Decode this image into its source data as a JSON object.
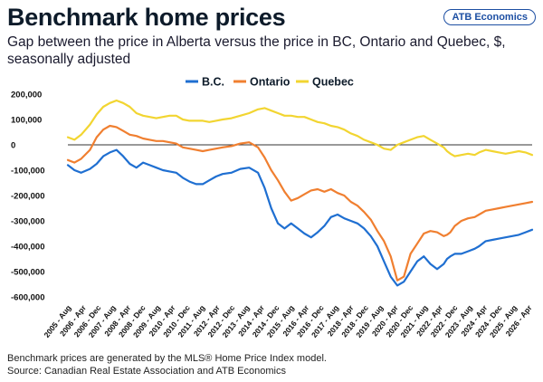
{
  "header": {
    "title": "Benchmark home prices",
    "brand": "ATB Economics",
    "subtitle": "Gap between the price in Alberta versus the price in BC, Ontario and Quebec, $, seasonally adjusted"
  },
  "footer": {
    "note": "Benchmark prices are generated by the MLS® Home Price Index model.",
    "source": "Source: Canadian Real Estate Association and ATB Economics"
  },
  "chart_data": {
    "type": "line",
    "ylim": [
      -600000,
      200000
    ],
    "yticks": [
      200000,
      100000,
      0,
      -100000,
      -200000,
      -300000,
      -400000,
      -500000,
      -600000
    ],
    "ytick_labels": [
      "200,000",
      "100,000",
      "0",
      "-100,000",
      "-200,000",
      "-300,000",
      "-400,000",
      "-500,000",
      "-600,000"
    ],
    "xlim": [
      2005.0,
      2026.0
    ],
    "xtick_labels": [
      "2005 - Aug",
      "2006 - Apr",
      "2006 - Dec",
      "2007 - Aug",
      "2008 - Apr",
      "2008 - Dec",
      "2009 - Aug",
      "2010 - Apr",
      "2010 - Dec",
      "2011 - Aug",
      "2012 - Apr",
      "2012 - Dec",
      "2013 - Aug",
      "2014 - Apr",
      "2014 - Dec",
      "2015 - Aug",
      "2016 - Apr",
      "2016 - Dec",
      "2017 - Aug",
      "2018 - Apr",
      "2018 - Dec",
      "2019 - Aug",
      "2020 - Apr",
      "2020 - Dec",
      "2021 - Aug",
      "2022 - Apr",
      "2022 - Dec",
      "2023 - Aug",
      "2024 - Apr",
      "2024 - Dec",
      "2025 - Aug",
      "2026 - Apr"
    ],
    "legend_position": "top-center",
    "colors": {
      "bc": "#1f6fd1",
      "ontario": "#f07f30",
      "quebec": "#f2d531",
      "zero_line": "#333333"
    },
    "series": [
      {
        "name": "B.C.",
        "x": [
          2005.0,
          2005.3,
          2005.6,
          2006.0,
          2006.3,
          2006.6,
          2006.9,
          2007.2,
          2007.5,
          2007.8,
          2008.1,
          2008.4,
          2008.7,
          2009.0,
          2009.3,
          2009.6,
          2009.9,
          2010.2,
          2010.5,
          2010.8,
          2011.1,
          2011.4,
          2011.7,
          2012.0,
          2012.4,
          2012.8,
          2013.2,
          2013.6,
          2013.9,
          2014.2,
          2014.5,
          2014.8,
          2015.1,
          2015.4,
          2015.7,
          2016.0,
          2016.3,
          2016.6,
          2016.9,
          2017.2,
          2017.5,
          2017.8,
          2018.1,
          2018.4,
          2018.7,
          2019.0,
          2019.3,
          2019.6,
          2019.9,
          2020.2,
          2020.5,
          2020.8,
          2021.1,
          2021.4,
          2021.7,
          2022.0,
          2022.15,
          2022.3,
          2022.5,
          2022.8,
          2023.1,
          2023.4,
          2023.6,
          2023.9,
          2024.2,
          2024.5,
          2024.8,
          2025.1,
          2025.4,
          2025.7,
          2026.0
        ],
        "values": [
          -80000,
          -100000,
          -110000,
          -95000,
          -75000,
          -45000,
          -30000,
          -20000,
          -45000,
          -75000,
          -90000,
          -70000,
          -80000,
          -90000,
          -100000,
          -105000,
          -110000,
          -130000,
          -145000,
          -155000,
          -155000,
          -140000,
          -125000,
          -115000,
          -110000,
          -95000,
          -90000,
          -110000,
          -170000,
          -250000,
          -310000,
          -330000,
          -310000,
          -330000,
          -350000,
          -365000,
          -345000,
          -320000,
          -285000,
          -275000,
          -290000,
          -300000,
          -310000,
          -330000,
          -360000,
          -400000,
          -460000,
          -520000,
          -555000,
          -540000,
          -500000,
          -460000,
          -440000,
          -470000,
          -490000,
          -470000,
          -450000,
          -440000,
          -430000,
          -430000,
          -420000,
          -410000,
          -400000,
          -380000,
          -375000,
          -370000,
          -365000,
          -360000,
          -355000,
          -345000,
          -335000
        ]
      },
      {
        "name": "Ontario",
        "x": [
          2005.0,
          2005.3,
          2005.6,
          2006.0,
          2006.3,
          2006.6,
          2006.9,
          2007.2,
          2007.5,
          2007.8,
          2008.1,
          2008.4,
          2008.7,
          2009.0,
          2009.3,
          2009.6,
          2009.9,
          2010.2,
          2010.5,
          2010.8,
          2011.1,
          2011.4,
          2011.7,
          2012.0,
          2012.4,
          2012.8,
          2013.2,
          2013.6,
          2013.9,
          2014.2,
          2014.5,
          2014.8,
          2015.1,
          2015.4,
          2015.7,
          2016.0,
          2016.3,
          2016.6,
          2016.9,
          2017.2,
          2017.5,
          2017.8,
          2018.1,
          2018.4,
          2018.7,
          2019.0,
          2019.3,
          2019.6,
          2019.9,
          2020.2,
          2020.5,
          2020.8,
          2021.1,
          2021.4,
          2021.7,
          2022.0,
          2022.15,
          2022.3,
          2022.5,
          2022.8,
          2023.1,
          2023.4,
          2023.6,
          2023.9,
          2024.2,
          2024.5,
          2024.8,
          2025.1,
          2025.4,
          2025.7,
          2026.0
        ],
        "values": [
          -60000,
          -70000,
          -55000,
          -20000,
          30000,
          60000,
          75000,
          70000,
          55000,
          40000,
          35000,
          25000,
          20000,
          15000,
          15000,
          10000,
          5000,
          -10000,
          -15000,
          -20000,
          -25000,
          -20000,
          -15000,
          -10000,
          -5000,
          5000,
          10000,
          -10000,
          -50000,
          -100000,
          -140000,
          -185000,
          -220000,
          -210000,
          -195000,
          -180000,
          -175000,
          -185000,
          -175000,
          -190000,
          -200000,
          -225000,
          -240000,
          -265000,
          -295000,
          -340000,
          -380000,
          -440000,
          -535000,
          -520000,
          -430000,
          -390000,
          -350000,
          -340000,
          -345000,
          -360000,
          -355000,
          -345000,
          -320000,
          -300000,
          -290000,
          -285000,
          -275000,
          -260000,
          -255000,
          -250000,
          -245000,
          -240000,
          -235000,
          -230000,
          -225000
        ]
      },
      {
        "name": "Quebec",
        "x": [
          2005.0,
          2005.3,
          2005.6,
          2006.0,
          2006.3,
          2006.6,
          2006.9,
          2007.2,
          2007.5,
          2007.8,
          2008.1,
          2008.4,
          2008.7,
          2009.0,
          2009.3,
          2009.6,
          2009.9,
          2010.2,
          2010.5,
          2010.8,
          2011.1,
          2011.4,
          2011.7,
          2012.0,
          2012.4,
          2012.8,
          2013.2,
          2013.6,
          2013.9,
          2014.2,
          2014.5,
          2014.8,
          2015.1,
          2015.4,
          2015.7,
          2016.0,
          2016.3,
          2016.6,
          2016.9,
          2017.2,
          2017.5,
          2017.8,
          2018.1,
          2018.4,
          2018.7,
          2019.0,
          2019.3,
          2019.6,
          2019.9,
          2020.2,
          2020.5,
          2020.8,
          2021.1,
          2021.4,
          2021.7,
          2022.0,
          2022.15,
          2022.3,
          2022.5,
          2022.8,
          2023.1,
          2023.4,
          2023.6,
          2023.9,
          2024.2,
          2024.5,
          2024.8,
          2025.1,
          2025.4,
          2025.7,
          2026.0
        ],
        "values": [
          30000,
          20000,
          40000,
          80000,
          120000,
          150000,
          165000,
          175000,
          165000,
          150000,
          125000,
          115000,
          110000,
          105000,
          110000,
          115000,
          115000,
          100000,
          95000,
          95000,
          95000,
          90000,
          95000,
          100000,
          105000,
          115000,
          125000,
          140000,
          145000,
          135000,
          125000,
          115000,
          115000,
          110000,
          110000,
          100000,
          90000,
          85000,
          75000,
          70000,
          60000,
          45000,
          35000,
          20000,
          10000,
          0,
          -15000,
          -20000,
          0,
          10000,
          20000,
          30000,
          35000,
          20000,
          5000,
          -10000,
          -25000,
          -35000,
          -45000,
          -40000,
          -35000,
          -40000,
          -30000,
          -20000,
          -25000,
          -30000,
          -35000,
          -30000,
          -25000,
          -30000,
          -40000
        ]
      }
    ]
  }
}
